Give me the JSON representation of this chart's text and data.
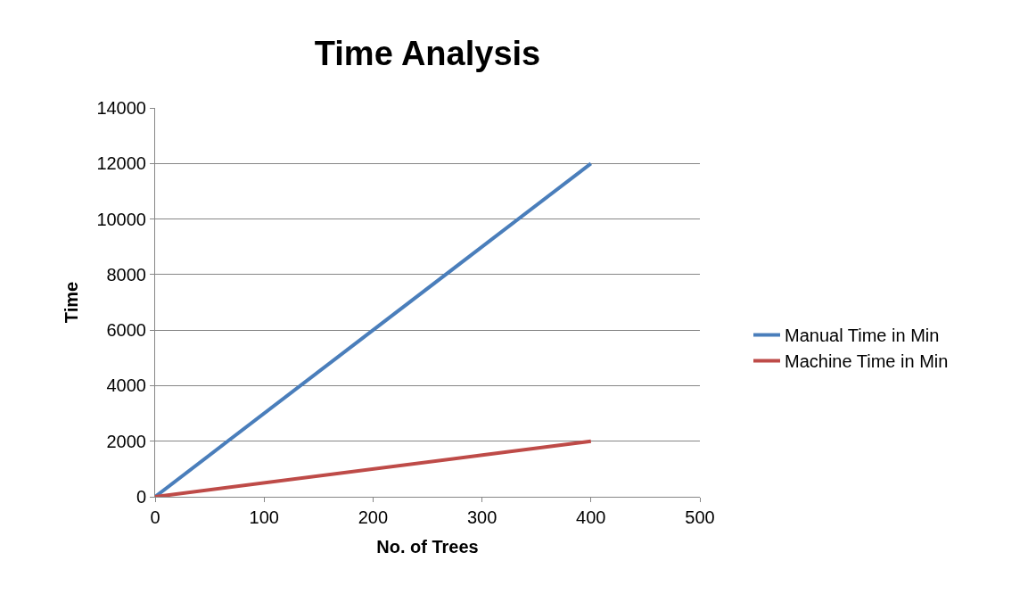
{
  "chart_data": {
    "type": "line",
    "title": "Time Analysis",
    "xlabel": "No. of Trees",
    "ylabel": "Time",
    "x": [
      0,
      400
    ],
    "series": [
      {
        "name": "Manual Time in Min",
        "color": "#4a7ebb",
        "values": [
          0,
          12000
        ]
      },
      {
        "name": "Machine Time in Min",
        "color": "#be4b48",
        "values": [
          0,
          2000
        ]
      }
    ],
    "xlim": [
      0,
      500
    ],
    "xticks": [
      0,
      100,
      200,
      300,
      400,
      500
    ],
    "ylim": [
      0,
      14000
    ],
    "yticks": [
      0,
      2000,
      4000,
      6000,
      8000,
      10000,
      12000,
      14000
    ],
    "grid": "y",
    "legend": "right",
    "marker": "none",
    "line_style": "solid"
  }
}
